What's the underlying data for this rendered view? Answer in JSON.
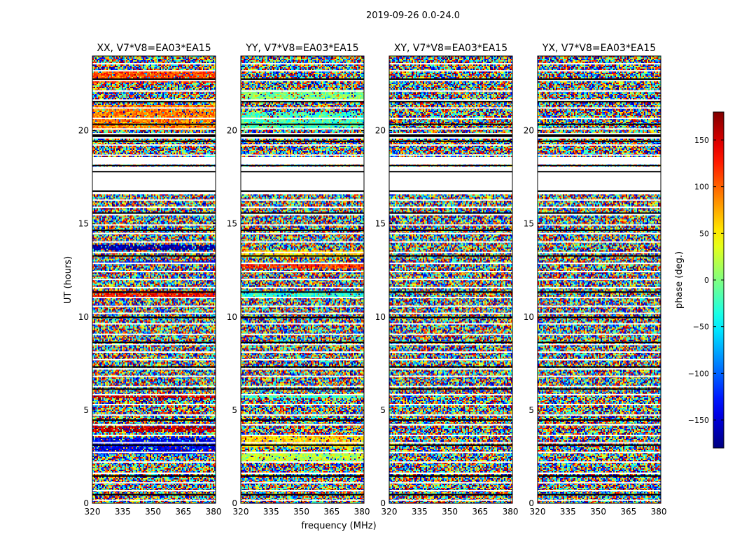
{
  "figure": {
    "suptitle": "2019-09-26 0.0-24.0",
    "xlabel": "frequency (MHz)",
    "ylabel": "UT (hours)",
    "colorbar_label": "phase (deg.)"
  },
  "chart_data": {
    "type": "heatmap",
    "title": "2019-09-26 0.0-24.0",
    "xlabel": "frequency (MHz)",
    "ylabel": "UT (hours)",
    "xlim": [
      320,
      381
    ],
    "ylim": [
      0,
      24
    ],
    "x_ticks": [
      320,
      335,
      350,
      365,
      380
    ],
    "y_ticks": [
      0,
      5,
      10,
      15,
      20
    ],
    "colormap": "jet",
    "colorbar": {
      "label": "phase (deg.)",
      "range": [
        -180,
        180
      ],
      "ticks": [
        -150,
        -100,
        -50,
        0,
        50,
        100,
        150
      ]
    },
    "flagged_hours": [
      [
        18.2,
        18.6
      ],
      [
        16.6,
        18.1
      ],
      [
        19.6,
        19.9
      ]
    ],
    "panels": [
      {
        "title": "XX, V7*V8=EA03*EA15",
        "coherent_bands": [
          {
            "t0": 20.0,
            "t1": 21.4,
            "phase": 90
          },
          {
            "t0": 22.6,
            "t1": 23.2,
            "phase": 110
          },
          {
            "t0": 13.6,
            "t1": 13.9,
            "phase": -170
          },
          {
            "t0": 12.8,
            "t1": 13.0,
            "phase": -130
          },
          {
            "t0": 11.0,
            "t1": 11.4,
            "phase": 130
          },
          {
            "t0": 5.6,
            "t1": 5.8,
            "phase": 150
          },
          {
            "t0": 3.8,
            "t1": 4.1,
            "phase": 160
          },
          {
            "t0": 2.6,
            "t1": 3.5,
            "phase": -140
          }
        ]
      },
      {
        "title": "YY, V7*V8=EA03*EA15",
        "coherent_bands": [
          {
            "t0": 20.1,
            "t1": 21.0,
            "phase": -20
          },
          {
            "t0": 21.6,
            "t1": 22.2,
            "phase": 0
          },
          {
            "t0": 13.2,
            "t1": 13.6,
            "phase": 60
          },
          {
            "t0": 12.6,
            "t1": 12.9,
            "phase": 120
          },
          {
            "t0": 11.0,
            "t1": 11.4,
            "phase": -30
          },
          {
            "t0": 5.6,
            "t1": 5.8,
            "phase": -20
          },
          {
            "t0": 3.0,
            "t1": 3.6,
            "phase": 60
          },
          {
            "t0": 2.2,
            "t1": 2.8,
            "phase": 20
          }
        ]
      },
      {
        "title": "XY, V7*V8=EA03*EA15",
        "coherent_bands": []
      },
      {
        "title": "YX, V7*V8=EA03*EA15",
        "coherent_bands": []
      }
    ]
  }
}
